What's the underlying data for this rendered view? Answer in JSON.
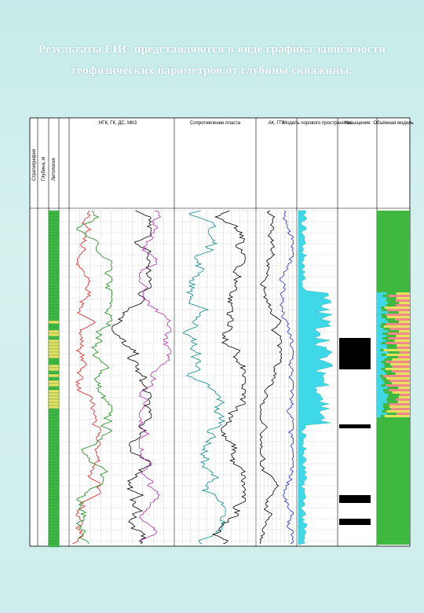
{
  "title": "Результаты ГИС представляются в виде графика зависимости геофизических параметров от глубины скважины.",
  "log": {
    "side_headers": [
      "Стратиграфия",
      "Глубина, м",
      "Литология"
    ],
    "track_headers": [
      "НГК, ГК, ДС, МКЗ",
      "Сопротивление пласта",
      "АК, ГГК",
      "Модель порового пространства",
      "Насыщение",
      "Объёмная модель"
    ]
  }
}
